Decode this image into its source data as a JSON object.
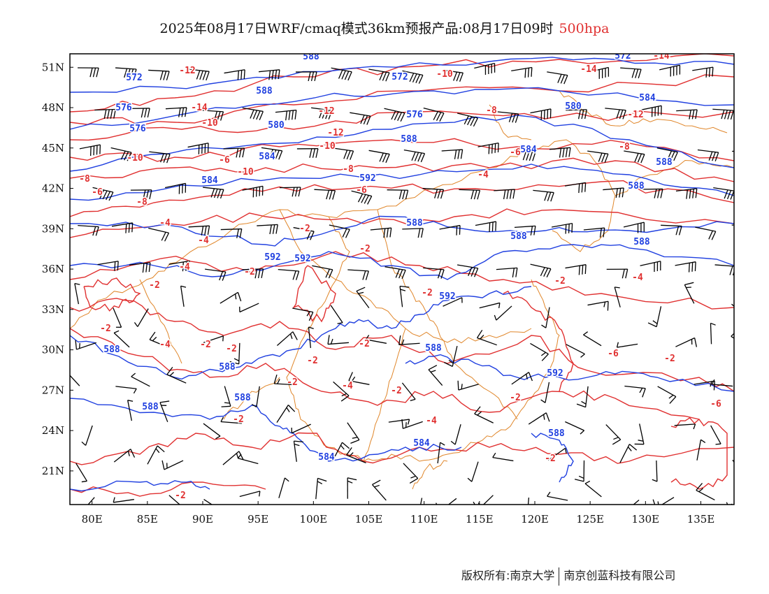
{
  "title": {
    "main": "2025年08月17日WRF/cmaq模式36km预报产品:08月17日09时",
    "level": "500hpa"
  },
  "footer": {
    "copyright": "版权所有:南京大学",
    "company": "南京创蓝科技有限公司"
  },
  "map": {
    "lon_range": [
      78,
      138
    ],
    "lat_range": [
      18.5,
      52
    ],
    "x_ticks": [
      "80E",
      "85E",
      "90E",
      "95E",
      "100E",
      "105E",
      "110E",
      "115E",
      "120E",
      "125E",
      "130E",
      "135E"
    ],
    "y_ticks": [
      "51N",
      "48N",
      "45N",
      "42N",
      "39N",
      "36N",
      "33N",
      "30N",
      "27N",
      "24N",
      "21N"
    ],
    "colors": {
      "height_contour": "#2040e0",
      "temperature_contour": "#e03030",
      "boundaries": "#e0862a",
      "wind_barb": "#000000",
      "frame": "#000000"
    },
    "height_labels": [
      "588",
      "572",
      "588",
      "572",
      "572",
      "576",
      "576",
      "580",
      "576",
      "584",
      "580",
      "588",
      "584",
      "584",
      "584",
      "588",
      "592",
      "588",
      "588",
      "588",
      "592",
      "592",
      "588",
      "592",
      "588",
      "588",
      "588",
      "592",
      "588",
      "588",
      "584",
      "588",
      "584"
    ],
    "temperature_labels": [
      "-14",
      "-10",
      "-12",
      "-14",
      "-12",
      "-14",
      "-10",
      "-12",
      "-12",
      "-10",
      "-8",
      "-10",
      "-8",
      "-6",
      "-8",
      "-8",
      "-6",
      "-10",
      "-6",
      "-4",
      "-6",
      "-8",
      "-4",
      "-2",
      "-4",
      "-2",
      "-4",
      "-2",
      "-2",
      "-4",
      "-2",
      "-2",
      "-2",
      "-4",
      "-2",
      "-2",
      "-2",
      "-2",
      "-4",
      "-6",
      "-2",
      "-2",
      "-2",
      "-6",
      "-2",
      "-2",
      "-2",
      "-4",
      "-2"
    ],
    "wind_field": "wind barbs"
  }
}
